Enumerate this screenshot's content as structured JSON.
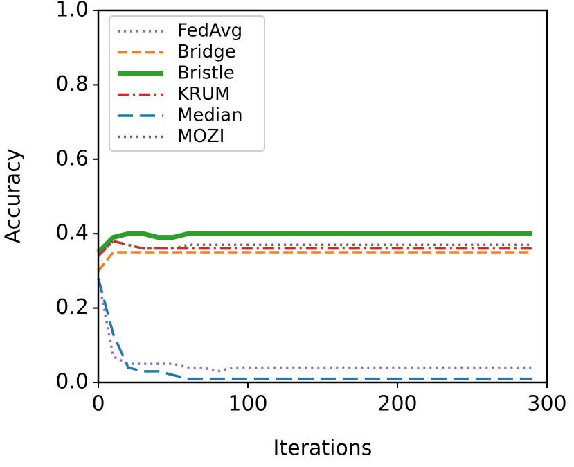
{
  "chart_data": {
    "type": "line",
    "xlabel": "Iterations",
    "ylabel": "Accuracy",
    "x": [
      0,
      10,
      20,
      30,
      40,
      50,
      60,
      70,
      80,
      90,
      100,
      110,
      120,
      130,
      140,
      150,
      160,
      170,
      180,
      190,
      200,
      210,
      220,
      230,
      240,
      250,
      260,
      270,
      280,
      290
    ],
    "series": [
      {
        "name": "FedAvg",
        "color": "#9467bd",
        "linestyle": "dotted",
        "values": [
          0.28,
          0.07,
          0.05,
          0.05,
          0.05,
          0.05,
          0.04,
          0.04,
          0.03,
          0.04,
          0.04,
          0.04,
          0.04,
          0.04,
          0.04,
          0.04,
          0.04,
          0.04,
          0.04,
          0.04,
          0.04,
          0.04,
          0.04,
          0.04,
          0.04,
          0.04,
          0.04,
          0.04,
          0.04,
          0.04
        ]
      },
      {
        "name": "Bridge",
        "color": "#ff7f0e",
        "linestyle": "dashed",
        "values": [
          0.3,
          0.35,
          0.35,
          0.35,
          0.35,
          0.35,
          0.35,
          0.35,
          0.35,
          0.35,
          0.35,
          0.35,
          0.35,
          0.35,
          0.35,
          0.35,
          0.35,
          0.35,
          0.35,
          0.35,
          0.35,
          0.35,
          0.35,
          0.35,
          0.35,
          0.35,
          0.35,
          0.35,
          0.35,
          0.35
        ]
      },
      {
        "name": "Bristle",
        "color": "#2ca02c",
        "linestyle": "solid",
        "values": [
          0.35,
          0.39,
          0.4,
          0.4,
          0.39,
          0.39,
          0.4,
          0.4,
          0.4,
          0.4,
          0.4,
          0.4,
          0.4,
          0.4,
          0.4,
          0.4,
          0.4,
          0.4,
          0.4,
          0.4,
          0.4,
          0.4,
          0.4,
          0.4,
          0.4,
          0.4,
          0.4,
          0.4,
          0.4,
          0.4
        ]
      },
      {
        "name": "KRUM",
        "color": "#d62728",
        "linestyle": "dashdot",
        "values": [
          0.34,
          0.38,
          0.37,
          0.36,
          0.36,
          0.36,
          0.36,
          0.36,
          0.36,
          0.36,
          0.36,
          0.36,
          0.36,
          0.36,
          0.36,
          0.36,
          0.36,
          0.36,
          0.36,
          0.36,
          0.36,
          0.36,
          0.36,
          0.36,
          0.36,
          0.36,
          0.36,
          0.36,
          0.36,
          0.36
        ]
      },
      {
        "name": "Median",
        "color": "#1f77b4",
        "linestyle": "longdash",
        "values": [
          0.28,
          0.13,
          0.04,
          0.03,
          0.03,
          0.02,
          0.01,
          0.01,
          0.01,
          0.01,
          0.01,
          0.01,
          0.01,
          0.01,
          0.01,
          0.01,
          0.01,
          0.01,
          0.01,
          0.01,
          0.01,
          0.01,
          0.01,
          0.01,
          0.01,
          0.01,
          0.01,
          0.01,
          0.01,
          0.01
        ]
      },
      {
        "name": "MOZI",
        "color": "#8c564b",
        "linestyle": "dotted",
        "values": [
          0.34,
          0.38,
          0.37,
          0.36,
          0.36,
          0.36,
          0.37,
          0.37,
          0.37,
          0.37,
          0.37,
          0.37,
          0.37,
          0.37,
          0.37,
          0.37,
          0.37,
          0.37,
          0.37,
          0.37,
          0.37,
          0.37,
          0.37,
          0.37,
          0.37,
          0.37,
          0.37,
          0.37,
          0.37,
          0.37
        ]
      }
    ],
    "xlim": [
      0,
      300
    ],
    "xticks": [
      0,
      100,
      200,
      300
    ],
    "ylim": [
      0,
      1
    ],
    "yticks": [
      {
        "value": 0,
        "label": "0.0"
      },
      0.2,
      0.4,
      0.6,
      0.8,
      {
        "value": 1,
        "label": "1.0"
      }
    ],
    "legend": "upper left"
  }
}
